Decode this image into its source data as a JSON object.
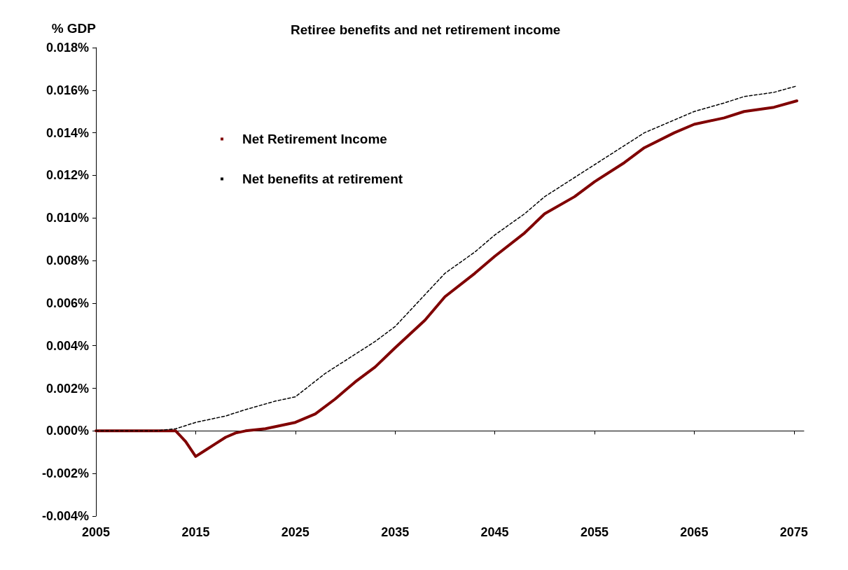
{
  "chart_data": {
    "type": "line",
    "title": "Retiree benefits and net retirement income",
    "ylabel": "% GDP",
    "xlim": [
      2005,
      2076
    ],
    "xticks": [
      2005,
      2015,
      2025,
      2035,
      2045,
      2055,
      2065,
      2075
    ],
    "ylim": [
      -0.004,
      0.018
    ],
    "yticks": [
      {
        "value": -0.004,
        "label": "-0.004%"
      },
      {
        "value": -0.002,
        "label": "-0.002%"
      },
      {
        "value": 0,
        "label": "0.000%"
      },
      {
        "value": 0.002,
        "label": "0.002%"
      },
      {
        "value": 0.004,
        "label": "0.004%"
      },
      {
        "value": 0.006,
        "label": "0.006%"
      },
      {
        "value": 0.008,
        "label": "0.008%"
      },
      {
        "value": 0.01,
        "label": "0.010%"
      },
      {
        "value": 0.012,
        "label": "0.012%"
      },
      {
        "value": 0.014,
        "label": "0.014%"
      },
      {
        "value": 0.016,
        "label": "0.016%"
      },
      {
        "value": 0.018,
        "label": "0.018%"
      }
    ],
    "legend": "top left",
    "marker": "none",
    "series": [
      {
        "name": "Net Retirement Income",
        "color": "#800000",
        "line_style": "solid",
        "x": [
          2005,
          2013,
          2014,
          2015,
          2016,
          2017,
          2018,
          2019,
          2020,
          2022,
          2024,
          2025,
          2027,
          2029,
          2030,
          2031,
          2033,
          2035,
          2038,
          2040,
          2043,
          2045,
          2048,
          2050,
          2053,
          2055,
          2058,
          2060,
          2063,
          2065,
          2068,
          2070,
          2073,
          2075.3
        ],
        "values": [
          0,
          0,
          -0.0005,
          -0.0012,
          -0.0009,
          -0.0006,
          -0.0003,
          -0.0001,
          0,
          0.0001,
          0.0003,
          0.0004,
          0.0008,
          0.0015,
          0.0019,
          0.0023,
          0.003,
          0.0039,
          0.0052,
          0.0063,
          0.0074,
          0.0082,
          0.0093,
          0.0102,
          0.011,
          0.0117,
          0.0126,
          0.0133,
          0.014,
          0.0144,
          0.0147,
          0.015,
          0.0152,
          0.0155
        ]
      },
      {
        "name": "Net benefits at retirement",
        "color": "#000000",
        "line_style": "dashed",
        "x": [
          2005,
          2011,
          2013,
          2015,
          2018,
          2020,
          2023,
          2025,
          2028,
          2030,
          2033,
          2035,
          2037,
          2039,
          2040,
          2043,
          2045,
          2048,
          2050,
          2053,
          2055,
          2058,
          2060,
          2063,
          2065,
          2068,
          2070,
          2073,
          2075.3
        ],
        "values": [
          0,
          0,
          0.0001,
          0.0004,
          0.0007,
          0.001,
          0.0014,
          0.0016,
          0.0027,
          0.0033,
          0.0042,
          0.0049,
          0.0059,
          0.0069,
          0.0074,
          0.0084,
          0.0092,
          0.0102,
          0.011,
          0.0119,
          0.0125,
          0.0134,
          0.014,
          0.0146,
          0.015,
          0.0154,
          0.0157,
          0.0159,
          0.0162
        ]
      }
    ]
  }
}
